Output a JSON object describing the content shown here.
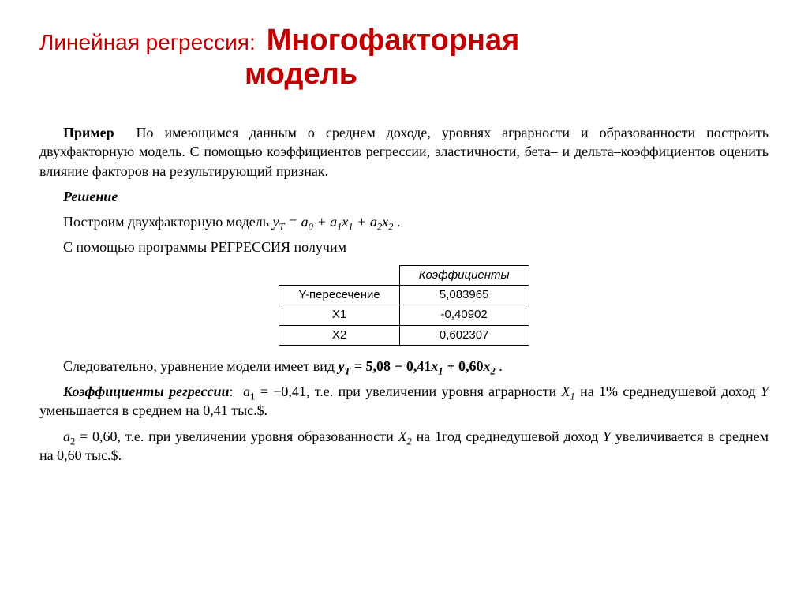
{
  "title": {
    "light": "Линейная регрессия:",
    "bold_a": "Многофакторная",
    "bold_b": "модель"
  },
  "example": {
    "label": "Пример",
    "text": "По имеющимся данным о среднем доходе, уровнях аграрности и образованности построить двухфакторную модель. С помощью коэффициентов регрессии, эластичности, бета– и дельта–коэффициентов оценить влияние факторов на результирующий признак."
  },
  "solution": {
    "label": "Решение",
    "line1_pre": "Построим двухфакторную модель  ",
    "line2": "С помощью программы РЕГРЕССИЯ получим"
  },
  "model_general": {
    "y": "y",
    "ysub": "T",
    "a0": "a",
    "a0sub": "0",
    "a1": "a",
    "a1sub": "1",
    "x1": "x",
    "x1sub": "1",
    "a2": "a",
    "a2sub": "2",
    "x2": "x",
    "x2sub": "2"
  },
  "table": {
    "header": "Коэффициенты",
    "rows": [
      {
        "label": "Y-пересечение",
        "value": "5,083965"
      },
      {
        "label": "X1",
        "value": "-0,40902"
      },
      {
        "label": "X2",
        "value": "0,602307"
      }
    ]
  },
  "followup": {
    "pre": "Следовательно, уравнение модели имеет вид  "
  },
  "model_fit": {
    "c0": "5,08",
    "c1": "0,41",
    "c2": "0,60"
  },
  "coef_label": "Коэффициенты регрессии",
  "coef1": {
    "sym": "a",
    "sub": "1",
    "val": "−0,41",
    "text_pre": ", т.е. при увеличении уровня аграрности ",
    "xvar": "X",
    "xsub": "1",
    "text_mid": " на 1% среднедушевой доход ",
    "yvar": "Y",
    "delta": "0,41 тыс.$.",
    "text_post": " уменьшается в среднем на "
  },
  "coef2": {
    "sym": "a",
    "sub": "2",
    "val": "0,60",
    "text_pre": ", т.е. при увеличении уровня образованности ",
    "xvar": "X",
    "xsub": "2",
    "text_mid": " на 1год среднедушевой доход ",
    "yvar": "Y",
    "delta": "0,60 тыс.$.",
    "text_post": " увеличивается в среднем на "
  }
}
